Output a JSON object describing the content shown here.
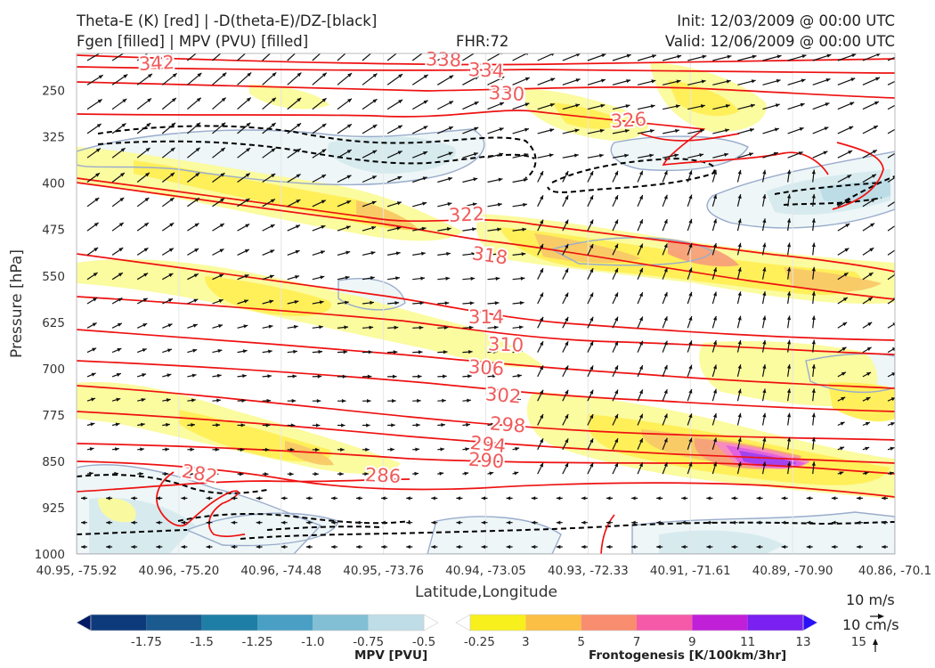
{
  "header": {
    "title_line1_left": "Theta-E (K) [red] | -D(theta-E)/DZ-[black]",
    "title_line2_left": "Fgen [filled] | MPV (PVU) [filled]",
    "fhr": "FHR:72",
    "init": "Init: 12/03/2009 @ 00:00 UTC",
    "valid": "Valid: 12/06/2009 @ 00:00 UTC"
  },
  "colors": {
    "theta_e": "#ee1111",
    "ddz": "#000000",
    "mpv_outline": "#9aaccc",
    "fgen": [
      "#fbfb9a",
      "#ffee55",
      "#f8c868",
      "#f7a07a",
      "#f58cc0",
      "#e060e0",
      "#a040f0",
      "#6a2af5"
    ],
    "mpv_fill": [
      "#eef6f7",
      "#d7ebef",
      "#bddde6"
    ]
  },
  "chart_data": {
    "type": "contour",
    "xlabel": "Latitude,Longitude",
    "ylabel": "Pressure [hPa]",
    "x_ticks": [
      "40.95, -75.92",
      "40.96, -75.20",
      "40.96, -74.48",
      "40.95, -73.76",
      "40.94, -73.05",
      "40.93, -72.33",
      "40.91, -71.61",
      "40.89, -70.90",
      "40.86, -70.1"
    ],
    "y_ticks": [
      250,
      325,
      400,
      475,
      550,
      625,
      700,
      775,
      850,
      925,
      1000
    ],
    "ylim": [
      1000,
      190
    ],
    "theta_e_contour_labels": [
      342,
      338,
      334,
      330,
      326,
      322,
      318,
      314,
      310,
      306,
      302,
      298,
      294,
      290,
      286,
      282
    ],
    "mpv_colorbar": {
      "label": "MPV [PVU]",
      "levels": [
        "-1.75",
        "-1.5",
        "-1.25",
        "-1.0",
        "-0.75",
        "-0.5",
        "-0.25"
      ],
      "colors": [
        "#001a66",
        "#0d3a7a",
        "#1a5a8e",
        "#1f7ea6",
        "#4aa0c4",
        "#83bfd4",
        "#bfdde6",
        "#ffffff"
      ]
    },
    "fgen_colorbar": {
      "label": "Frontogenesis [K/100km/3hr]",
      "levels": [
        "3",
        "5",
        "7",
        "9",
        "11",
        "13",
        "15"
      ],
      "colors": [
        "#ffffff",
        "#f7f01c",
        "#fbbf45",
        "#f98d70",
        "#f55aa8",
        "#c020d8",
        "#7a20f0",
        "#2a10f8"
      ]
    },
    "wind_reference": {
      "horizontal": "10 m/s",
      "vertical": "10 cm/s"
    }
  }
}
